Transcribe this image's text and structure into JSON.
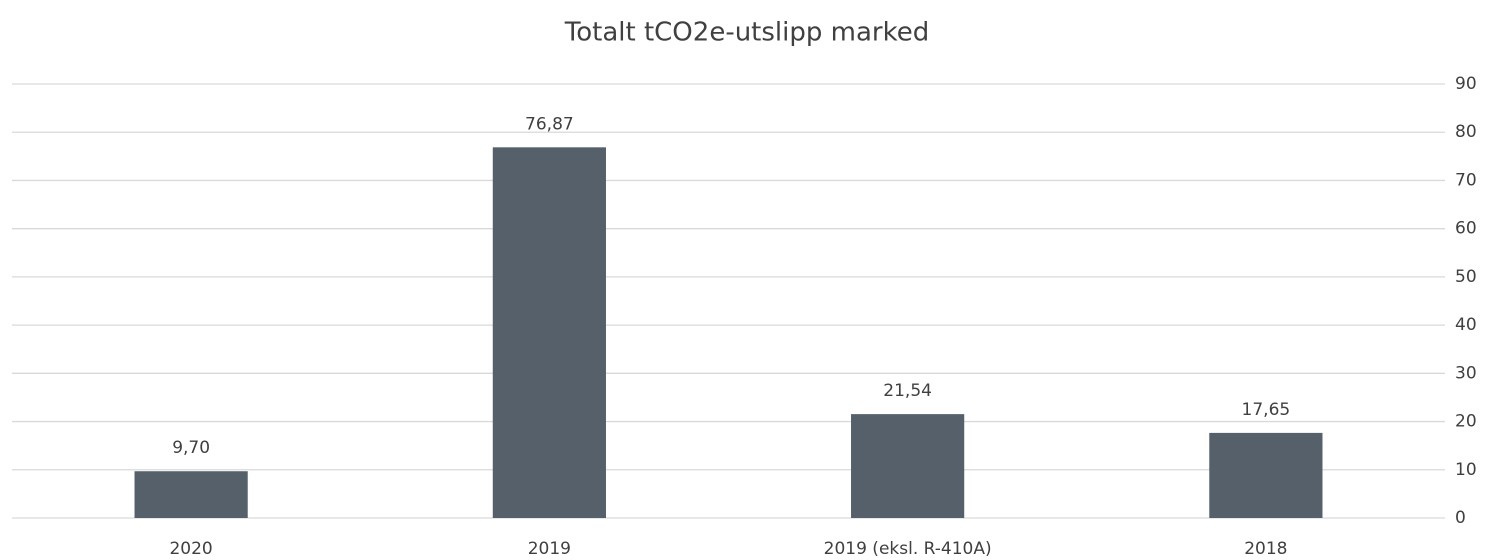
{
  "chart_data": {
    "type": "bar",
    "title": "Totalt tCO2e-utslipp marked",
    "categories": [
      "2020",
      "2019",
      "2019 (eksl. R-410A)",
      "2018"
    ],
    "values": [
      9.7,
      76.87,
      21.54,
      17.65
    ],
    "value_labels": [
      "9,70",
      "76,87",
      "21,54",
      "17,65"
    ],
    "color": "#56606b",
    "ylim": [
      0,
      90
    ],
    "yticks": [
      0,
      10,
      20,
      30,
      40,
      50,
      60,
      70,
      80,
      90
    ],
    "grid": true
  }
}
